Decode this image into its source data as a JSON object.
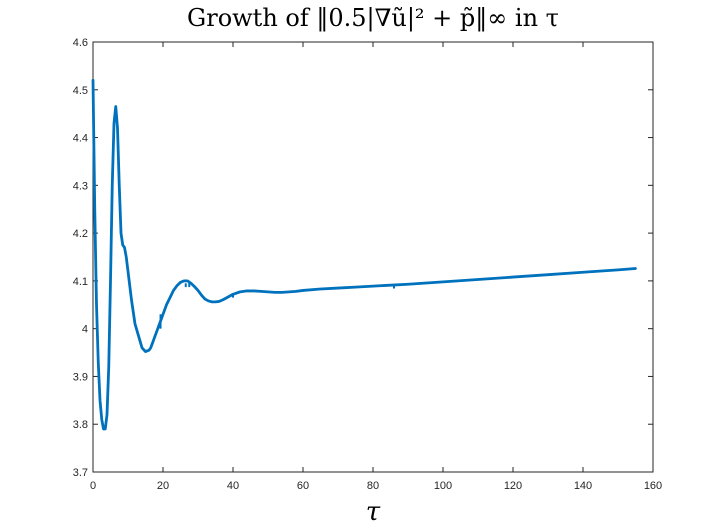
{
  "chart_data": {
    "type": "line",
    "title": "Growth of ‖0.5|∇ũ|² + p̃‖∞ in τ",
    "xlabel": "τ",
    "ylabel": "",
    "xlim": [
      0,
      160
    ],
    "ylim": [
      3.7,
      4.6
    ],
    "grid": false,
    "x_ticks": [
      0,
      20,
      40,
      60,
      80,
      100,
      120,
      140,
      160
    ],
    "y_ticks": [
      3.7,
      3.8,
      3.9,
      4.0,
      4.1,
      4.2,
      4.3,
      4.4,
      4.5,
      4.6
    ],
    "x_tick_labels": [
      "0",
      "20",
      "40",
      "60",
      "80",
      "100",
      "120",
      "140",
      "160"
    ],
    "y_tick_labels": [
      "3.7",
      "3.8",
      "3.9",
      "4",
      "4.1",
      "4.2",
      "4.3",
      "4.4",
      "4.5",
      "4.6"
    ],
    "series": [
      {
        "color": "#0072BD",
        "x": [
          0,
          0.5,
          1,
          1.5,
          2,
          2.5,
          3,
          3.5,
          4,
          4.5,
          5,
          5.5,
          6,
          6.5,
          7,
          7.5,
          8,
          8.5,
          9,
          9.5,
          10,
          11,
          12,
          13,
          14,
          15,
          16,
          16.5,
          17,
          18,
          19,
          19.5,
          20,
          21,
          22,
          23,
          24,
          25,
          26,
          27,
          28,
          29,
          30,
          31,
          32,
          33,
          34,
          35,
          36,
          37,
          38,
          40,
          42,
          44,
          46,
          48,
          50,
          52,
          54,
          56,
          58,
          60,
          65,
          70,
          75,
          80,
          85,
          90,
          100,
          110,
          120,
          130,
          140,
          150,
          155
        ],
        "y": [
          4.52,
          4.25,
          4.05,
          3.93,
          3.85,
          3.81,
          3.79,
          3.79,
          3.82,
          3.92,
          4.1,
          4.3,
          4.43,
          4.465,
          4.42,
          4.3,
          4.2,
          4.175,
          4.17,
          4.15,
          4.12,
          4.06,
          4.01,
          3.985,
          3.96,
          3.952,
          3.955,
          3.96,
          3.97,
          3.99,
          4.01,
          4.02,
          4.03,
          4.05,
          4.065,
          4.08,
          4.09,
          4.097,
          4.1,
          4.1,
          4.095,
          4.088,
          4.08,
          4.07,
          4.062,
          4.058,
          4.056,
          4.056,
          4.057,
          4.06,
          4.064,
          4.072,
          4.077,
          4.079,
          4.079,
          4.078,
          4.077,
          4.076,
          4.076,
          4.077,
          4.078,
          4.08,
          4.083,
          4.085,
          4.087,
          4.089,
          4.091,
          4.093,
          4.098,
          4.103,
          4.108,
          4.113,
          4.118,
          4.123,
          4.126
        ]
      }
    ],
    "spikes": [
      {
        "x": 19.3,
        "y_from": 4.0,
        "y_to": 4.03
      },
      {
        "x": 26.5,
        "y_from": 4.087,
        "y_to": 4.095
      },
      {
        "x": 27.5,
        "y_from": 4.087,
        "y_to": 4.098
      },
      {
        "x": 40,
        "y_from": 4.065,
        "y_to": 4.073
      },
      {
        "x": 86,
        "y_from": 4.084,
        "y_to": 4.092
      }
    ]
  }
}
